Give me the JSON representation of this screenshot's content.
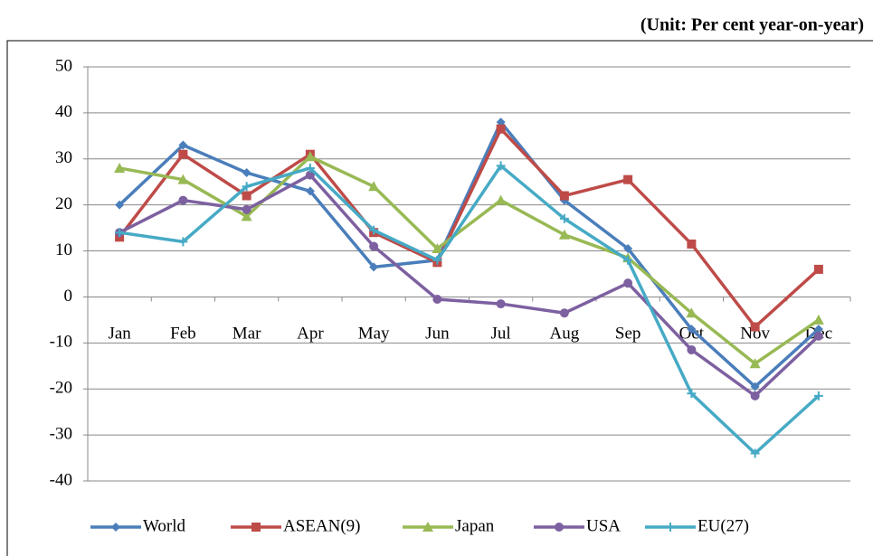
{
  "chart_data": {
    "type": "line",
    "unit_label": "(Unit: Per cent year-on-year)",
    "categories": [
      "Jan",
      "Feb",
      "Mar",
      "Apr",
      "May",
      "Jun",
      "Jul",
      "Aug",
      "Sep",
      "Oct",
      "Nov",
      "Dec"
    ],
    "series": [
      {
        "name": "World",
        "color": "#4a7ebb",
        "marker": "diamond",
        "values": [
          20,
          33,
          27,
          23,
          6.5,
          8,
          38,
          21,
          10.5,
          -7,
          -19.5,
          -7
        ]
      },
      {
        "name": "ASEAN(9)",
        "color": "#be4b48",
        "marker": "square",
        "values": [
          13,
          31,
          22,
          31,
          14,
          7.5,
          36.5,
          22,
          25.5,
          11.5,
          -6.5,
          6
        ]
      },
      {
        "name": "Japan",
        "color": "#98b954",
        "marker": "triangle",
        "values": [
          28,
          25.5,
          17.5,
          30.5,
          24,
          10.5,
          21,
          13.5,
          8.5,
          -3.5,
          -14.5,
          -5
        ]
      },
      {
        "name": "USA",
        "color": "#7d60a0",
        "marker": "circle",
        "values": [
          14,
          21,
          19,
          26.5,
          11,
          -0.5,
          -1.5,
          -3.5,
          3,
          -11.5,
          -21.5,
          -8.5
        ]
      },
      {
        "name": "EU(27)",
        "color": "#46aac5",
        "marker": "plus",
        "values": [
          14,
          12,
          24,
          28,
          14.5,
          8,
          28.5,
          17,
          8,
          -21,
          -34,
          -21.5
        ]
      }
    ],
    "ylim": [
      -40,
      50
    ],
    "yticks": [
      -40,
      -30,
      -20,
      -10,
      0,
      10,
      20,
      30,
      40,
      50
    ],
    "grid": true
  }
}
